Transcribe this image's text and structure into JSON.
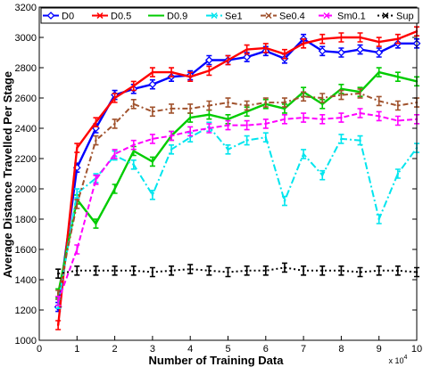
{
  "chart_data": {
    "type": "line",
    "title": "",
    "xlabel": "Number of Training Data",
    "ylabel": "Average Distance Travelled Per Stage",
    "x_exponent_label": "x 10",
    "x_exponent_power": "4",
    "xlim": [
      0,
      10
    ],
    "ylim": [
      1000,
      3200
    ],
    "x_ticks": [
      0,
      1,
      2,
      3,
      4,
      5,
      6,
      7,
      8,
      9,
      10
    ],
    "y_ticks": [
      1000,
      1200,
      1400,
      1600,
      1800,
      2000,
      2200,
      2400,
      2600,
      2800,
      3000,
      3200
    ],
    "grid": false,
    "legend_position": "top",
    "x": [
      0.5,
      1,
      1.5,
      2,
      2.5,
      3,
      3.5,
      4,
      4.5,
      5,
      5.5,
      6,
      6.5,
      7,
      7.5,
      8,
      8.5,
      9,
      9.5,
      10
    ],
    "series": [
      {
        "name": "D0",
        "color": "#0000ff",
        "dash": "",
        "marker": "diamond",
        "values": [
          1220,
          2140,
          2400,
          2620,
          2660,
          2690,
          2740,
          2750,
          2850,
          2850,
          2870,
          2910,
          2860,
          2990,
          2910,
          2900,
          2920,
          2900,
          2960,
          2960
        ]
      },
      {
        "name": "D0.5",
        "color": "#ff0000",
        "dash": "",
        "marker": "cross",
        "values": [
          1100,
          2270,
          2440,
          2600,
          2680,
          2770,
          2770,
          2740,
          2780,
          2850,
          2920,
          2930,
          2890,
          2960,
          2990,
          3000,
          3000,
          2970,
          2990,
          3040
        ]
      },
      {
        "name": "D0.9",
        "color": "#00cc00",
        "dash": "",
        "marker": "",
        "values": [
          1310,
          1930,
          1770,
          2000,
          2250,
          2180,
          2350,
          2470,
          2490,
          2460,
          2510,
          2560,
          2530,
          2640,
          2560,
          2660,
          2640,
          2770,
          2740,
          2710
        ]
      },
      {
        "name": "Se1",
        "color": "#00e5ee",
        "dash": "8,3,2,3",
        "marker": "cross",
        "values": [
          1240,
          1970,
          2070,
          2220,
          2160,
          1960,
          2260,
          2340,
          2410,
          2260,
          2320,
          2340,
          1920,
          2230,
          2090,
          2330,
          2320,
          1800,
          2100,
          2270
        ]
      },
      {
        "name": "Se0.4",
        "color": "#a0522d",
        "dash": "6,3,2,3",
        "marker": "cross",
        "values": [
          1300,
          1900,
          2320,
          2430,
          2560,
          2510,
          2530,
          2530,
          2550,
          2570,
          2550,
          2570,
          2570,
          2610,
          2600,
          2620,
          2630,
          2580,
          2550,
          2570
        ]
      },
      {
        "name": "Sm0.1",
        "color": "#ff00ff",
        "dash": "6,3",
        "marker": "cross",
        "values": [
          1260,
          1600,
          2060,
          2230,
          2290,
          2330,
          2350,
          2380,
          2400,
          2420,
          2420,
          2430,
          2460,
          2470,
          2460,
          2470,
          2500,
          2480,
          2450,
          2460
        ]
      },
      {
        "name": "Sup",
        "color": "#000000",
        "dash": "2,3",
        "marker": "cross",
        "values": [
          1440,
          1460,
          1460,
          1460,
          1460,
          1450,
          1460,
          1470,
          1460,
          1450,
          1460,
          1460,
          1480,
          1460,
          1460,
          1460,
          1450,
          1460,
          1460,
          1450
        ]
      }
    ]
  }
}
